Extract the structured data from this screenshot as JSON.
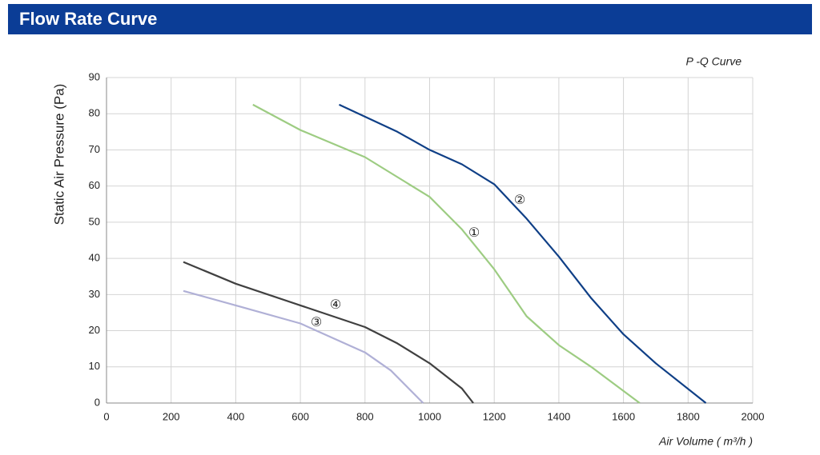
{
  "chart_data": {
    "type": "line",
    "title": "Flow Rate Curve",
    "subtitle": "P -Q Curve",
    "x_label": "Air Volume ( m³/h )",
    "y_label": "Static Air Pressure  (Pa)",
    "xlim": [
      0,
      2000
    ],
    "ylim": [
      0,
      90
    ],
    "xticks": [
      0,
      200,
      400,
      600,
      800,
      1000,
      1200,
      1400,
      1600,
      1800,
      2000
    ],
    "yticks": [
      0,
      10,
      20,
      30,
      40,
      50,
      60,
      70,
      80,
      90
    ],
    "grid": true,
    "series": [
      {
        "name": "①",
        "color": "#9dcc82",
        "x": [
          453,
          600,
          800,
          1000,
          1100,
          1200,
          1300,
          1400,
          1500,
          1650
        ],
        "values": [
          82.5,
          75.5,
          68,
          57,
          48,
          37,
          24,
          16,
          10,
          0
        ]
      },
      {
        "name": "②",
        "color": "#0f3f86",
        "x": [
          720,
          900,
          1000,
          1100,
          1200,
          1300,
          1400,
          1500,
          1600,
          1700,
          1855
        ],
        "values": [
          82.5,
          75,
          70,
          66,
          60.5,
          51,
          40.5,
          29,
          19,
          11,
          0
        ]
      },
      {
        "name": "③",
        "color": "#b0b0d6",
        "x": [
          238,
          400,
          600,
          700,
          800,
          880,
          980
        ],
        "values": [
          31,
          27,
          22,
          18,
          14,
          9,
          0
        ]
      },
      {
        "name": "④",
        "color": "#404040",
        "x": [
          238,
          400,
          600,
          800,
          900,
          1000,
          1100,
          1135
        ],
        "values": [
          39,
          33,
          27,
          21,
          16.5,
          11,
          4,
          0
        ]
      }
    ]
  }
}
